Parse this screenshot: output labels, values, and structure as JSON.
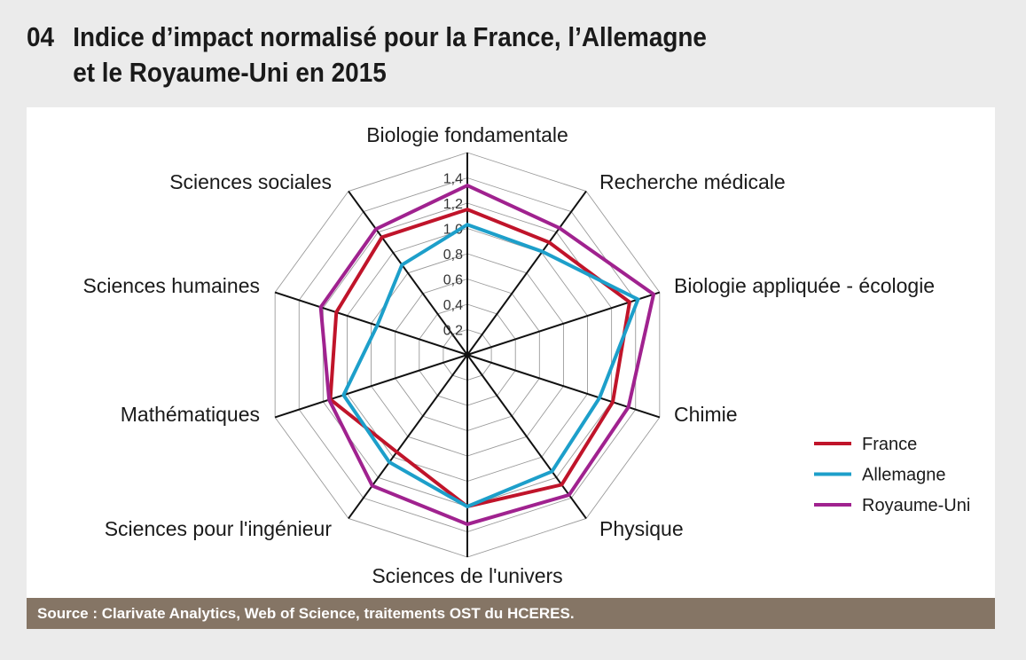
{
  "header": {
    "number": "04",
    "title_line1": "Indice d’impact normalisé pour la France, l’Allemagne",
    "title_line2": "et le Royaume-Uni en 2015"
  },
  "footer": {
    "source": "Source : Clarivate Analytics, Web of Science, traitements OST du HCERES."
  },
  "chart_data": {
    "type": "radar",
    "title": "Indice d’impact normalisé pour la France, l’Allemagne et le Royaume-Uni en 2015",
    "categories": [
      "Biologie fondamentale",
      "Recherche médicale",
      "Biologie appliquée - écologie",
      "Chimie",
      "Physique",
      "Sciences de l'univers",
      "Sciences pour l'ingénieur",
      "Mathématiques",
      "Sciences humaines",
      "Sciences sociales"
    ],
    "rlim": [
      0,
      1.6
    ],
    "ticks": [
      "0,2",
      "0,4",
      "0,6",
      "0,8",
      "1,0",
      "1,2",
      "1,4"
    ],
    "tick_values": [
      0.2,
      0.4,
      0.6,
      0.8,
      1.0,
      1.2,
      1.4
    ],
    "grid": true,
    "legend_position": "bottom-right",
    "series": [
      {
        "name": "France",
        "color": "#c0142a",
        "values": [
          1.15,
          1.1,
          1.35,
          1.21,
          1.27,
          1.2,
          0.95,
          1.14,
          1.09,
          1.15
        ]
      },
      {
        "name": "Allemagne",
        "color": "#1d9fca",
        "values": [
          1.03,
          1.01,
          1.42,
          1.1,
          1.14,
          1.2,
          1.05,
          1.03,
          0.75,
          0.88
        ]
      },
      {
        "name": "Royaume-Uni",
        "color": "#a0228f",
        "values": [
          1.34,
          1.24,
          1.55,
          1.34,
          1.37,
          1.34,
          1.28,
          1.15,
          1.22,
          1.23
        ]
      }
    ]
  }
}
